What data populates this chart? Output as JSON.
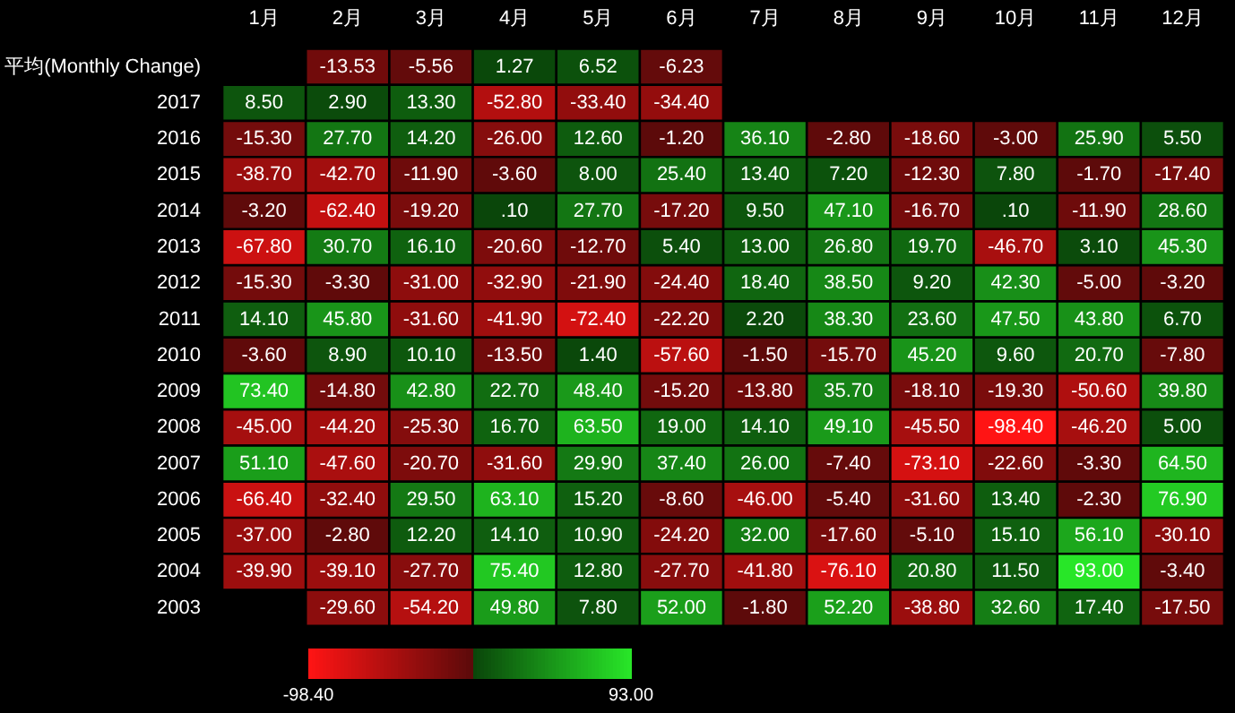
{
  "chart_data": {
    "type": "heatmap",
    "categories": [
      "1月",
      "2月",
      "3月",
      "4月",
      "5月",
      "6月",
      "7月",
      "8月",
      "9月",
      "10月",
      "11月",
      "12月"
    ],
    "y_categories": [
      "平均(Monthly Change)",
      "2017",
      "2016",
      "2015",
      "2014",
      "2013",
      "2012",
      "2011",
      "2010",
      "2009",
      "2008",
      "2007",
      "2006",
      "2005",
      "2004",
      "2003"
    ],
    "cells": [
      [
        null,
        -13.53,
        -5.56,
        1.27,
        6.52,
        -6.23,
        null,
        null,
        null,
        null,
        null,
        null
      ],
      [
        8.5,
        2.9,
        13.3,
        -52.8,
        -33.4,
        -34.4,
        null,
        null,
        null,
        null,
        null,
        null
      ],
      [
        -15.3,
        27.7,
        14.2,
        -26,
        12.6,
        -1.2,
        36.1,
        -2.8,
        -18.6,
        -3,
        25.9,
        5.5
      ],
      [
        -38.7,
        -42.7,
        -11.9,
        -3.6,
        8,
        25.4,
        13.4,
        7.2,
        -12.3,
        7.8,
        -1.7,
        -17.4
      ],
      [
        -3.2,
        -62.4,
        -19.2,
        0.1,
        27.7,
        -17.2,
        9.5,
        47.1,
        -16.7,
        0.1,
        -11.9,
        28.6
      ],
      [
        -67.8,
        30.7,
        16.1,
        -20.6,
        -12.7,
        5.4,
        13,
        26.8,
        19.7,
        -46.7,
        3.1,
        45.3
      ],
      [
        -15.3,
        -3.3,
        -31,
        -32.9,
        -21.9,
        -24.4,
        18.4,
        38.5,
        9.2,
        42.3,
        -5,
        -3.2
      ],
      [
        14.1,
        45.8,
        -31.6,
        -41.9,
        -72.4,
        -22.2,
        2.2,
        38.3,
        23.6,
        47.5,
        43.8,
        6.7
      ],
      [
        -3.6,
        8.9,
        10.1,
        -13.5,
        1.4,
        -57.6,
        -1.5,
        -15.7,
        45.2,
        9.6,
        20.7,
        -7.8
      ],
      [
        73.4,
        -14.8,
        42.8,
        22.7,
        48.4,
        -15.2,
        -13.8,
        35.7,
        -18.1,
        -19.3,
        -50.6,
        39.8
      ],
      [
        -45,
        -44.2,
        -25.3,
        16.7,
        63.5,
        19,
        14.1,
        49.1,
        -45.5,
        -98.4,
        -46.2,
        5
      ],
      [
        51.1,
        -47.6,
        -20.7,
        -31.6,
        29.9,
        37.4,
        26,
        -7.4,
        -73.1,
        -22.6,
        -3.3,
        64.5
      ],
      [
        -66.4,
        -32.4,
        29.5,
        63.1,
        15.2,
        -8.6,
        -46,
        -5.4,
        -31.6,
        13.4,
        -2.3,
        76.9
      ],
      [
        -37,
        -2.8,
        12.2,
        14.1,
        10.9,
        -24.2,
        32,
        -17.6,
        -5.1,
        15.1,
        56.1,
        -30.1
      ],
      [
        -39.9,
        -39.1,
        -27.7,
        75.4,
        12.8,
        -27.7,
        -41.8,
        -76.1,
        20.8,
        11.5,
        93,
        -3.4
      ],
      [
        null,
        -29.6,
        -54.2,
        49.8,
        7.8,
        52,
        -1.8,
        52.2,
        -38.8,
        32.6,
        17.4,
        -17.5
      ]
    ],
    "cell_labels": [
      [
        null,
        "-13.53",
        "-5.56",
        "1.27",
        "6.52",
        "-6.23",
        null,
        null,
        null,
        null,
        null,
        null
      ],
      [
        "8.50",
        "2.90",
        "13.30",
        "-52.80",
        "-33.40",
        "-34.40",
        null,
        null,
        null,
        null,
        null,
        null
      ],
      [
        "-15.30",
        "27.70",
        "14.20",
        "-26.00",
        "12.60",
        "-1.20",
        "36.10",
        "-2.80",
        "-18.60",
        "-3.00",
        "25.90",
        "5.50"
      ],
      [
        "-38.70",
        "-42.70",
        "-11.90",
        "-3.60",
        "8.00",
        "25.40",
        "13.40",
        "7.20",
        "-12.30",
        "7.80",
        "-1.70",
        "-17.40"
      ],
      [
        "-3.20",
        "-62.40",
        "-19.20",
        ".10",
        "27.70",
        "-17.20",
        "9.50",
        "47.10",
        "-16.70",
        ".10",
        "-11.90",
        "28.60"
      ],
      [
        "-67.80",
        "30.70",
        "16.10",
        "-20.60",
        "-12.70",
        "5.40",
        "13.00",
        "26.80",
        "19.70",
        "-46.70",
        "3.10",
        "45.30"
      ],
      [
        "-15.30",
        "-3.30",
        "-31.00",
        "-32.90",
        "-21.90",
        "-24.40",
        "18.40",
        "38.50",
        "9.20",
        "42.30",
        "-5.00",
        "-3.20"
      ],
      [
        "14.10",
        "45.80",
        "-31.60",
        "-41.90",
        "-72.40",
        "-22.20",
        "2.20",
        "38.30",
        "23.60",
        "47.50",
        "43.80",
        "6.70"
      ],
      [
        "-3.60",
        "8.90",
        "10.10",
        "-13.50",
        "1.40",
        "-57.60",
        "-1.50",
        "-15.70",
        "45.20",
        "9.60",
        "20.70",
        "-7.80"
      ],
      [
        "73.40",
        "-14.80",
        "42.80",
        "22.70",
        "48.40",
        "-15.20",
        "-13.80",
        "35.70",
        "-18.10",
        "-19.30",
        "-50.60",
        "39.80"
      ],
      [
        "-45.00",
        "-44.20",
        "-25.30",
        "16.70",
        "63.50",
        "19.00",
        "14.10",
        "49.10",
        "-45.50",
        "-98.40",
        "-46.20",
        "5.00"
      ],
      [
        "51.10",
        "-47.60",
        "-20.70",
        "-31.60",
        "29.90",
        "37.40",
        "26.00",
        "-7.40",
        "-73.10",
        "-22.60",
        "-3.30",
        "64.50"
      ],
      [
        "-66.40",
        "-32.40",
        "29.50",
        "63.10",
        "15.20",
        "-8.60",
        "-46.00",
        "-5.40",
        "-31.60",
        "13.40",
        "-2.30",
        "76.90"
      ],
      [
        "-37.00",
        "-2.80",
        "12.20",
        "14.10",
        "10.90",
        "-24.20",
        "32.00",
        "-17.60",
        "-5.10",
        "15.10",
        "56.10",
        "-30.10"
      ],
      [
        "-39.90",
        "-39.10",
        "-27.70",
        "75.40",
        "12.80",
        "-27.70",
        "-41.80",
        "-76.10",
        "20.80",
        "11.50",
        "93.00",
        "-3.40"
      ],
      [
        null,
        "-29.60",
        "-54.20",
        "49.80",
        "7.80",
        "52.00",
        "-1.80",
        "52.20",
        "-38.80",
        "32.60",
        "17.40",
        "-17.50"
      ]
    ],
    "clim": [
      -98.4,
      93
    ],
    "cticks": [
      {
        "value": -98.4,
        "label": "-98.40"
      },
      {
        "value": 93,
        "label": "93.00"
      }
    ]
  }
}
